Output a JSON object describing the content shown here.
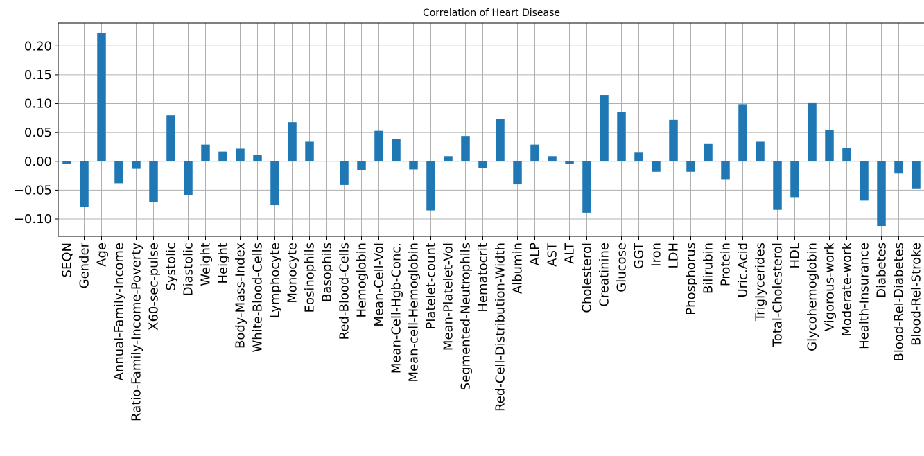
{
  "chart_data": {
    "type": "bar",
    "title": "Correlation of Heart Disease",
    "xlabel": "",
    "ylabel": "",
    "ylim": [
      -0.13,
      0.24
    ],
    "yticks": [
      -0.1,
      -0.05,
      0.0,
      0.05,
      0.1,
      0.15,
      0.2
    ],
    "ytick_labels": [
      "−0.10",
      "−0.05",
      "0.00",
      "0.05",
      "0.10",
      "0.15",
      "0.20"
    ],
    "grid": true,
    "bar_color": "#1f77b4",
    "grid_color": "#b0b0b0",
    "categories": [
      "SEQN",
      "Gender",
      "Age",
      "Annual-Family-Income",
      "Ratio-Family-Income-Poverty",
      "X60-sec-pulse",
      "Systolic",
      "Diastolic",
      "Weight",
      "Height",
      "Body-Mass-Index",
      "White-Blood-Cells",
      "Lymphocyte",
      "Monocyte",
      "Eosinophils",
      "Basophils",
      "Red-Blood-Cells",
      "Hemoglobin",
      "Mean-Cell-Vol",
      "Mean-Cell-Hgb-Conc.",
      "Mean-cell-Hemoglobin",
      "Platelet-count",
      "Mean-Platelet-Vol",
      "Segmented-Neutrophils",
      "Hematocrit",
      "Red-Cell-Distribution-Width",
      "Albumin",
      "ALP",
      "AST",
      "ALT",
      "Cholesterol",
      "Creatinine",
      "Glucose",
      "GGT",
      "Iron",
      "LDH",
      "Phosphorus",
      "Bilirubin",
      "Protein",
      "Uric.Acid",
      "Triglycerides",
      "Total-Cholesterol",
      "HDL",
      "Glycohemoglobin",
      "Vigorous-work",
      "Moderate-work",
      "Health-Insurance",
      "Diabetes",
      "Blood-Rel-Diabetes",
      "Blood-Rel-Stroke"
    ],
    "values": [
      -0.005,
      -0.079,
      0.223,
      -0.038,
      -0.013,
      -0.071,
      0.08,
      -0.059,
      0.029,
      0.017,
      0.022,
      0.011,
      -0.076,
      0.068,
      0.034,
      0.0,
      -0.041,
      -0.015,
      0.053,
      0.039,
      -0.014,
      -0.085,
      0.009,
      0.044,
      -0.012,
      0.074,
      -0.04,
      0.029,
      0.009,
      -0.004,
      -0.089,
      0.115,
      0.086,
      0.015,
      -0.018,
      0.072,
      -0.018,
      0.03,
      -0.032,
      0.099,
      0.034,
      -0.084,
      -0.062,
      0.102,
      0.054,
      0.023,
      -0.068,
      -0.112,
      -0.021,
      -0.048
    ]
  }
}
